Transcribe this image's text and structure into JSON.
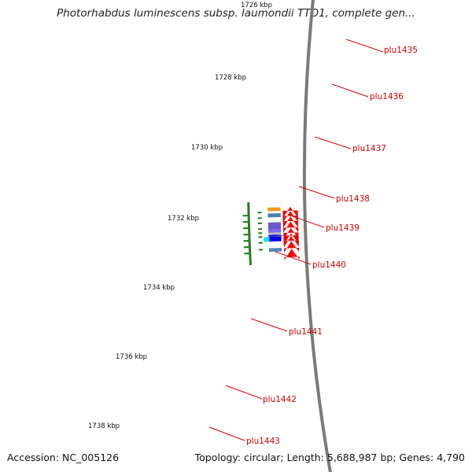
{
  "title": "Photorhabdus luminescens subsp. laumondii TTO1, complete gen...",
  "footer": {
    "accession": "Accession: NC_005126",
    "summary": "Topology: circular; Length: 5,688,987 bp; Genes: 4,790"
  },
  "colors": {
    "backbone": "#7a7a7a",
    "forward_gene": "#ff0000",
    "tick": "#1a7a1a",
    "label": "#cc0000",
    "leader": "#e00000"
  },
  "scale": {
    "ticks_kbp": [
      1726,
      1728,
      1730,
      1732,
      1734,
      1736,
      1738
    ],
    "unit": "kbp"
  },
  "genes": [
    {
      "label": "plu1435",
      "strand": "reverse",
      "color": "#4f86c0"
    },
    {
      "label": "plu1436",
      "strand": "forward",
      "color": "#ff0000"
    },
    {
      "label": "plu1437",
      "strand": "reverse",
      "color": "#0000ee",
      "accent": "#00e5ff"
    },
    {
      "label": "plu1438",
      "strand": "reverse",
      "color": "#0000ee",
      "accent": "#4f86c0"
    },
    {
      "label": "plu1439",
      "strand": "reverse",
      "color": "#c0c0c0"
    },
    {
      "label": "plu1440",
      "strand": "reverse",
      "color": "#7b68ee"
    },
    {
      "label": "plu1441",
      "strand": "reverse",
      "color": "#6a5acd"
    },
    {
      "label": "plu1442",
      "strand": "forward",
      "color": "#ff0000"
    },
    {
      "label": "plu1443",
      "strand": "reverse",
      "color": "#4682b4"
    }
  ],
  "extra_gene_color": "#ff9900"
}
